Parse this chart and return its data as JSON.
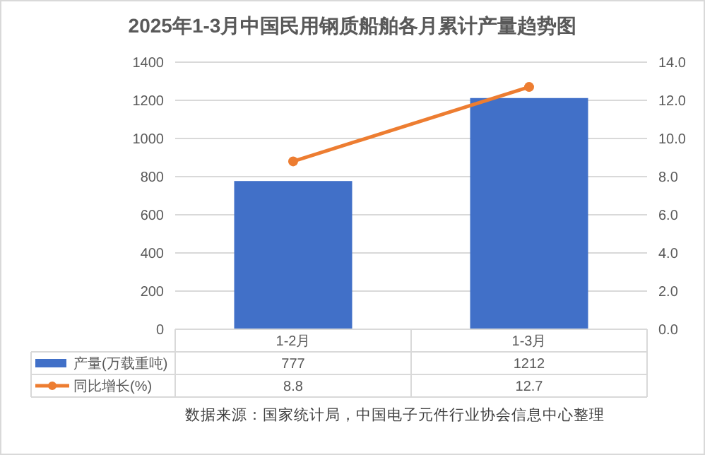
{
  "chart_data": {
    "type": "bar",
    "title": "2025年1-3月中国民用钢质船舶各月累计产量趋势图",
    "categories": [
      "1-2月",
      "1-3月"
    ],
    "series": [
      {
        "name": "产量(万载重吨)",
        "color": "#4170c8",
        "values": [
          777,
          1212
        ]
      },
      {
        "name": "同比增长(%)",
        "type": "line",
        "axis": "y2",
        "color": "#ed7d31",
        "values": [
          8.8,
          12.7
        ],
        "marker": "circle"
      }
    ],
    "ylim": [
      0,
      1400
    ],
    "yticks": [
      0,
      200,
      400,
      600,
      800,
      1000,
      1200,
      1400
    ],
    "y2lim": [
      0,
      14
    ],
    "y2ticks": [
      {
        "value": 0,
        "label": "0.0"
      },
      {
        "value": 2,
        "label": "2.0"
      },
      {
        "value": 4,
        "label": "4.0"
      },
      {
        "value": 6,
        "label": "6.0"
      },
      {
        "value": 8,
        "label": "8.0"
      },
      {
        "value": 10,
        "label": "10.0"
      },
      {
        "value": 12,
        "label": "12.0"
      },
      {
        "value": 14,
        "label": "14.0"
      }
    ],
    "grid": "y",
    "legend": "bottom",
    "data_labels": true,
    "annotations": [
      "数据来源：国家统计局，中国电子元件行业协会信息中心整理"
    ]
  }
}
